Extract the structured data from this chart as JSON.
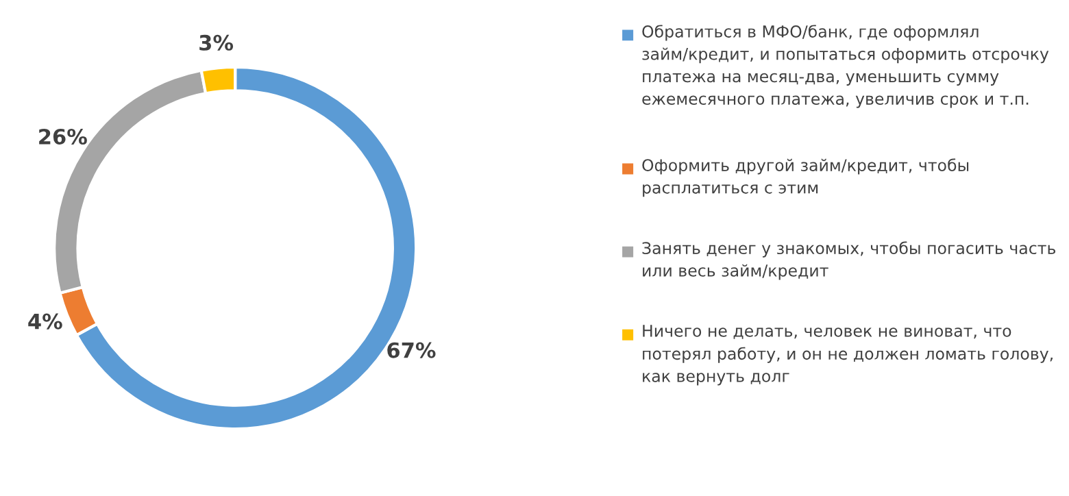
{
  "chart_data": {
    "type": "donut",
    "legend": "right",
    "categories": [
      "Обратиться в МФО/банк, где оформлял займ/кредит, и попытаться оформить отсрочку платежа на месяц-два, уменьшить сумму ежемесячного платежа, увеличив срок и т.п.",
      "Оформить другой займ/кредит, чтобы расплатиться с этим",
      "Занять денег у знакомых, чтобы погасить часть или весь займ/кредит",
      "Ничего не делать, человек не виноват, что потерял работу, и он не должен ломать голову, как вернуть долг"
    ],
    "values": [
      67,
      4,
      26,
      3
    ],
    "colors": [
      "#5b9bd5",
      "#ed7d31",
      "#a5a5a5",
      "#ffc000"
    ],
    "value_labels": [
      "67%",
      "4%",
      "26%",
      "3%"
    ]
  }
}
